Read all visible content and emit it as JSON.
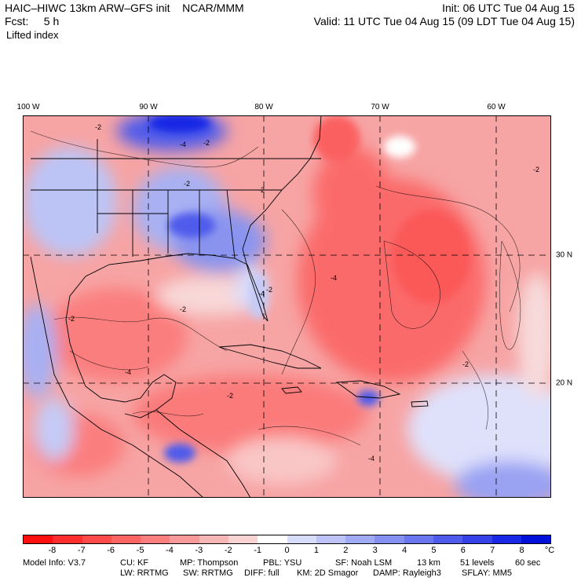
{
  "header": {
    "title_left": "HAIC–HIWC 13km ARW–GFS init    NCAR/MMM",
    "init": "Init: 06 UTC Tue 04 Aug 15",
    "fcst": "Fcst:     5 h",
    "valid": "Valid: 11 UTC Tue 04 Aug 15 (09 LDT Tue 04 Aug 15)",
    "field": "Lifted index"
  },
  "map": {
    "lon_labels": [
      {
        "text": "100 W",
        "lon": -100
      },
      {
        "text": "90 W",
        "lon": -90
      },
      {
        "text": "80 W",
        "lon": -80
      },
      {
        "text": "70 W",
        "lon": -70
      },
      {
        "text": "60 W",
        "lon": -60
      }
    ],
    "lat_labels": [
      {
        "text": "30 N",
        "lat": 30
      },
      {
        "text": "20 N",
        "lat": 20
      }
    ],
    "extent": {
      "lon_min": -100,
      "lon_max": -58.5,
      "lat_min": 10,
      "lat_max": 39
    },
    "contour_labels": [
      "-2",
      "-4",
      "-2",
      "-2",
      "-4",
      "-2",
      "-2",
      "-4",
      "-2",
      "-2",
      "-4",
      "-2",
      "-2",
      "-4",
      "-2"
    ]
  },
  "colorbar": {
    "colors": [
      "#ff1010",
      "#ff2e2e",
      "#ff4a4a",
      "#fd6464",
      "#fb7e7e",
      "#f89a9a",
      "#f7b6b6",
      "#f9d2d2",
      "#ffffff",
      "#d8dcfb",
      "#bdc3f7",
      "#a1aaf4",
      "#8690f1",
      "#6a76ee",
      "#4f5ceb",
      "#3442e8",
      "#1828e5",
      "#0010d8"
    ],
    "ticks": [
      "-8",
      "-7",
      "-6",
      "-5",
      "-4",
      "-3",
      "-2",
      "-1",
      "0",
      "1",
      "2",
      "3",
      "4",
      "5",
      "6",
      "7",
      "8"
    ],
    "unit": "°C"
  },
  "model_info": {
    "row1": [
      "Model Info: V3.7",
      "CU: KF",
      "MP: Thompson",
      "PBL: YSU",
      "SF: Noah LSM",
      "13 km",
      "51 levels",
      "60 sec"
    ],
    "row2": [
      "LW: RRTMG",
      "SW: RRTMG",
      "DIFF: full",
      "KM: 2D Smagor",
      "DAMP: Rayleigh3",
      "SFLAY: MM5"
    ]
  }
}
